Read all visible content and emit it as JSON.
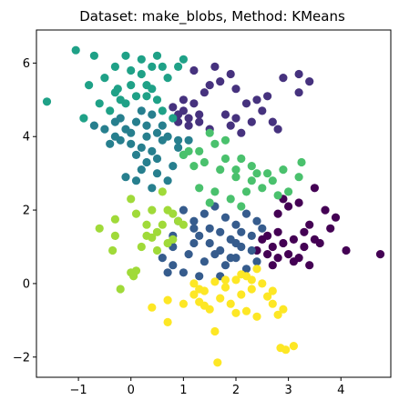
{
  "chart_data": {
    "type": "scatter",
    "title": "Dataset: make_blobs, Method: KMeans",
    "xlabel": "",
    "ylabel": "",
    "xlim": [
      -1.8,
      4.95
    ],
    "ylim": [
      -2.55,
      6.9
    ],
    "x_ticks": [
      -1,
      0,
      1,
      2,
      3,
      4
    ],
    "y_ticks": [
      -2,
      0,
      2,
      4,
      6
    ],
    "grid": false,
    "clusters": [
      {
        "color": "#440154",
        "points": [
          [
            2.5,
            1.2
          ],
          [
            2.7,
            1.0
          ],
          [
            2.9,
            1.1
          ],
          [
            3.1,
            1.2
          ],
          [
            3.3,
            1.0
          ],
          [
            2.6,
            0.8
          ],
          [
            2.8,
            0.7
          ],
          [
            3.0,
            0.8
          ],
          [
            3.2,
            0.7
          ],
          [
            3.4,
            0.5
          ],
          [
            3.6,
            1.1
          ],
          [
            3.8,
            1.5
          ],
          [
            3.9,
            1.8
          ],
          [
            3.7,
            2.0
          ],
          [
            3.5,
            2.6
          ],
          [
            3.2,
            2.2
          ],
          [
            3.0,
            2.1
          ],
          [
            2.9,
            2.3
          ],
          [
            2.8,
            1.9
          ],
          [
            3.4,
            1.6
          ],
          [
            4.1,
            0.9
          ],
          [
            4.75,
            0.8
          ],
          [
            2.6,
            1.3
          ],
          [
            2.8,
            1.4
          ],
          [
            3.1,
            0.6
          ],
          [
            3.3,
            1.4
          ],
          [
            2.4,
            0.9
          ],
          [
            2.7,
            0.5
          ],
          [
            3.5,
            1.2
          ]
        ]
      },
      {
        "color": "#46327e",
        "points": [
          [
            0.8,
            4.8
          ],
          [
            0.9,
            4.6
          ],
          [
            1.0,
            4.7
          ],
          [
            1.1,
            4.5
          ],
          [
            1.2,
            4.9
          ],
          [
            1.3,
            4.6
          ],
          [
            1.0,
            5.0
          ],
          [
            1.4,
            5.2
          ],
          [
            1.5,
            5.4
          ],
          [
            1.7,
            5.5
          ],
          [
            2.0,
            5.3
          ],
          [
            2.2,
            4.9
          ],
          [
            1.8,
            4.6
          ],
          [
            1.9,
            4.3
          ],
          [
            2.1,
            4.1
          ],
          [
            2.3,
            4.4
          ],
          [
            2.5,
            4.7
          ],
          [
            2.4,
            5.0
          ],
          [
            2.6,
            5.1
          ],
          [
            2.9,
            5.6
          ],
          [
            3.2,
            5.7
          ],
          [
            3.4,
            5.5
          ],
          [
            3.2,
            5.2
          ],
          [
            2.8,
            4.2
          ],
          [
            1.2,
            5.8
          ],
          [
            1.6,
            5.9
          ],
          [
            1.9,
            5.7
          ],
          [
            1.3,
            4.4
          ],
          [
            1.5,
            4.2
          ],
          [
            2.0,
            4.5
          ],
          [
            1.1,
            4.3
          ],
          [
            2.7,
            4.4
          ],
          [
            0.9,
            4.4
          ]
        ]
      },
      {
        "color": "#365c8d",
        "points": [
          [
            1.0,
            2.0
          ],
          [
            1.2,
            1.7
          ],
          [
            1.4,
            1.9
          ],
          [
            1.6,
            2.1
          ],
          [
            1.8,
            1.8
          ],
          [
            2.0,
            1.6
          ],
          [
            2.2,
            1.9
          ],
          [
            2.4,
            1.7
          ],
          [
            1.3,
            1.3
          ],
          [
            1.5,
            1.1
          ],
          [
            1.7,
            1.4
          ],
          [
            1.9,
            1.2
          ],
          [
            2.1,
            1.0
          ],
          [
            2.3,
            1.3
          ],
          [
            1.1,
            0.8
          ],
          [
            1.4,
            0.6
          ],
          [
            1.6,
            0.8
          ],
          [
            1.8,
            0.5
          ],
          [
            2.0,
            0.7
          ],
          [
            2.2,
            0.4
          ],
          [
            2.4,
            0.6
          ],
          [
            0.8,
            0.5
          ],
          [
            1.0,
            0.3
          ],
          [
            1.3,
            0.2
          ],
          [
            1.7,
            0.2
          ],
          [
            0.6,
            0.7
          ],
          [
            0.8,
            1.0
          ],
          [
            0.8,
            1.3
          ],
          [
            1.5,
            1.5
          ],
          [
            2.1,
            1.4
          ],
          [
            0.9,
            1.7
          ],
          [
            1.2,
            1.1
          ],
          [
            2.0,
            1.1
          ],
          [
            1.7,
            0.9
          ],
          [
            1.2,
            1.5
          ],
          [
            2.3,
            0.9
          ],
          [
            1.9,
            0.7
          ],
          [
            0.7,
            0.3
          ],
          [
            2.5,
            1.5
          ]
        ]
      },
      {
        "color": "#277f8e",
        "points": [
          [
            -0.7,
            4.3
          ],
          [
            -0.5,
            4.2
          ],
          [
            -0.3,
            4.4
          ],
          [
            -0.1,
            4.2
          ],
          [
            0.1,
            4.4
          ],
          [
            0.3,
            4.3
          ],
          [
            0.5,
            4.1
          ],
          [
            0.7,
            4.0
          ],
          [
            0.9,
            3.9
          ],
          [
            -0.4,
            3.8
          ],
          [
            -0.2,
            3.9
          ],
          [
            0.0,
            4.1
          ],
          [
            0.2,
            3.7
          ],
          [
            0.4,
            3.6
          ],
          [
            0.1,
            3.5
          ],
          [
            0.3,
            3.3
          ],
          [
            0.2,
            3.1
          ],
          [
            0.5,
            3.0
          ],
          [
            0.8,
            3.2
          ],
          [
            1.0,
            3.5
          ],
          [
            0.0,
            3.8
          ],
          [
            0.6,
            3.9
          ],
          [
            0.4,
            4.6
          ],
          [
            0.2,
            4.7
          ],
          [
            -0.2,
            4.5
          ],
          [
            0.6,
            4.3
          ],
          [
            0.1,
            2.8
          ],
          [
            -0.1,
            2.9
          ],
          [
            0.4,
            2.6
          ],
          [
            0.7,
            2.8
          ],
          [
            0.9,
            3.7
          ],
          [
            1.1,
            3.9
          ],
          [
            0.5,
            3.4
          ],
          [
            -0.3,
            4.0
          ],
          [
            0.3,
            4.0
          ]
        ]
      },
      {
        "color": "#1fa187",
        "points": [
          [
            -1.6,
            4.95
          ],
          [
            -1.05,
            6.35
          ],
          [
            -0.7,
            6.2
          ],
          [
            -0.8,
            5.4
          ],
          [
            -0.5,
            5.6
          ],
          [
            -0.3,
            5.2
          ],
          [
            -0.2,
            5.0
          ],
          [
            0.0,
            5.4
          ],
          [
            0.2,
            5.7
          ],
          [
            0.4,
            5.9
          ],
          [
            0.5,
            6.2
          ],
          [
            0.6,
            5.9
          ],
          [
            0.7,
            5.6
          ],
          [
            0.9,
            5.9
          ],
          [
            1.0,
            6.1
          ],
          [
            0.3,
            5.4
          ],
          [
            0.1,
            5.1
          ],
          [
            -0.1,
            4.9
          ],
          [
            -0.4,
            4.7
          ],
          [
            -0.3,
            5.9
          ],
          [
            -0.1,
            6.2
          ],
          [
            0.2,
            6.1
          ],
          [
            0.4,
            5.3
          ],
          [
            0.6,
            4.7
          ],
          [
            0.8,
            4.5
          ],
          [
            -0.9,
            4.5
          ],
          [
            -0.6,
            4.9
          ],
          [
            0.0,
            5.8
          ],
          [
            0.3,
            5.1
          ],
          [
            0.5,
            5.0
          ],
          [
            -0.25,
            5.3
          ]
        ]
      },
      {
        "color": "#4ac16d",
        "points": [
          [
            1.0,
            3.5
          ],
          [
            1.3,
            3.6
          ],
          [
            1.6,
            3.8
          ],
          [
            1.8,
            3.4
          ],
          [
            2.0,
            3.1
          ],
          [
            2.3,
            2.8
          ],
          [
            2.5,
            2.6
          ],
          [
            2.8,
            2.4
          ],
          [
            3.0,
            2.5
          ],
          [
            2.2,
            2.5
          ],
          [
            1.7,
            3.1
          ],
          [
            1.4,
            3.3
          ],
          [
            2.0,
            2.9
          ],
          [
            2.9,
            3.1
          ],
          [
            3.2,
            2.9
          ],
          [
            2.6,
            3.0
          ],
          [
            1.2,
            3.2
          ],
          [
            1.8,
            3.9
          ],
          [
            2.3,
            3.2
          ],
          [
            2.1,
            2.1
          ],
          [
            1.9,
            2.3
          ],
          [
            1.6,
            2.5
          ],
          [
            1.3,
            2.6
          ],
          [
            1.5,
            2.2
          ],
          [
            2.7,
            2.8
          ],
          [
            3.25,
            3.3
          ],
          [
            2.4,
            3.0
          ],
          [
            1.1,
            3.6
          ],
          [
            1.5,
            4.1
          ],
          [
            2.1,
            3.4
          ]
        ]
      },
      {
        "color": "#a0da39",
        "points": [
          [
            -0.6,
            1.5
          ],
          [
            -0.3,
            1.75
          ],
          [
            0.0,
            2.3
          ],
          [
            0.1,
            1.9
          ],
          [
            0.3,
            1.3
          ],
          [
            0.4,
            1.25
          ],
          [
            0.5,
            1.4
          ],
          [
            0.6,
            1.6
          ],
          [
            0.8,
            1.9
          ],
          [
            1.0,
            1.6
          ],
          [
            0.7,
            2.0
          ],
          [
            0.9,
            1.7
          ],
          [
            0.2,
            1.0
          ],
          [
            0.1,
            0.35
          ],
          [
            0.05,
            0.2
          ],
          [
            -0.2,
            -0.15
          ],
          [
            -0.3,
            1.3
          ],
          [
            -0.35,
            0.9
          ],
          [
            0.5,
            0.9
          ],
          [
            0.4,
            2.0
          ],
          [
            0.8,
            1.2
          ],
          [
            0.3,
            1.6
          ],
          [
            0.6,
            2.5
          ],
          [
            0.7,
            1.1
          ],
          [
            0.0,
            0.3
          ]
        ]
      },
      {
        "color": "#fde725",
        "points": [
          [
            0.4,
            -0.65
          ],
          [
            0.7,
            -1.05
          ],
          [
            0.7,
            -0.45
          ],
          [
            1.0,
            -0.55
          ],
          [
            1.2,
            -0.3
          ],
          [
            1.3,
            -0.5
          ],
          [
            1.4,
            -0.2
          ],
          [
            1.5,
            -0.7
          ],
          [
            1.6,
            -1.3
          ],
          [
            1.65,
            -2.15
          ],
          [
            1.7,
            -0.4
          ],
          [
            1.8,
            -0.1
          ],
          [
            1.9,
            -0.55
          ],
          [
            2.0,
            -0.8
          ],
          [
            2.1,
            -0.3
          ],
          [
            2.2,
            -0.75
          ],
          [
            2.3,
            -0.15
          ],
          [
            2.4,
            -0.9
          ],
          [
            2.5,
            0.0
          ],
          [
            2.6,
            -0.35
          ],
          [
            2.7,
            -0.55
          ],
          [
            2.8,
            -0.85
          ],
          [
            2.9,
            -0.7
          ],
          [
            2.85,
            -1.75
          ],
          [
            2.95,
            -1.8
          ],
          [
            3.1,
            -1.7
          ],
          [
            1.2,
            0.0
          ],
          [
            1.4,
            -0.6
          ],
          [
            1.6,
            0.05
          ],
          [
            1.8,
            0.1
          ],
          [
            2.1,
            0.25
          ],
          [
            2.3,
            0.1
          ],
          [
            2.4,
            0.4
          ],
          [
            2.2,
            0.2
          ],
          [
            2.0,
            0.1
          ],
          [
            1.3,
            -0.15
          ],
          [
            2.7,
            -0.2
          ]
        ]
      }
    ]
  }
}
